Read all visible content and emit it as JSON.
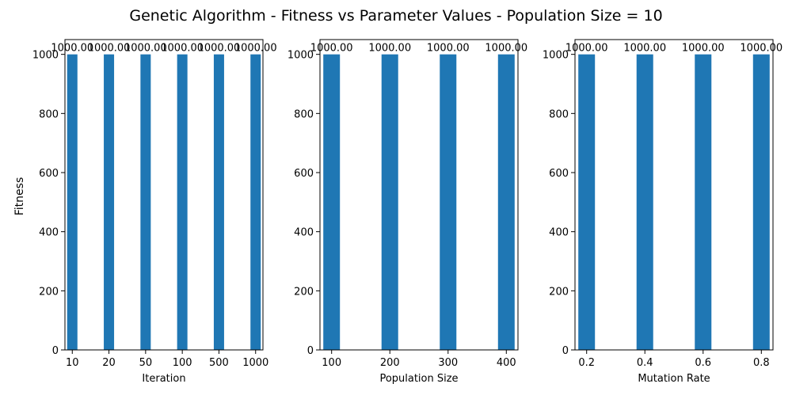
{
  "figure": {
    "suptitle": "Genetic Algorithm - Fitness vs Parameter Values - Population Size = 10",
    "shared_ylabel": "Fitness",
    "bar_color": "#1f77b4"
  },
  "chart_data": [
    {
      "type": "bar",
      "categories": [
        "10",
        "20",
        "50",
        "100",
        "500",
        "1000"
      ],
      "values": [
        1000.0,
        1000.0,
        1000.0,
        1000.0,
        1000.0,
        1000.0
      ],
      "data_labels": [
        "1000.00",
        "1000.00",
        "1000.00",
        "1000.00",
        "1000.00",
        "1000.00"
      ],
      "title": "",
      "xlabel": "Iteration",
      "ylabel": "Fitness",
      "ylim": [
        0,
        1050
      ],
      "yticks": [
        0,
        200,
        400,
        600,
        800,
        1000
      ],
      "grid": false
    },
    {
      "type": "bar",
      "categories": [
        "100",
        "200",
        "300",
        "400"
      ],
      "values": [
        1000.0,
        1000.0,
        1000.0,
        1000.0
      ],
      "data_labels": [
        "1000.00",
        "1000.00",
        "1000.00",
        "1000.00"
      ],
      "title": "",
      "xlabel": "Population Size",
      "ylabel": "",
      "ylim": [
        0,
        1050
      ],
      "yticks": [
        0,
        200,
        400,
        600,
        800,
        1000
      ],
      "grid": false
    },
    {
      "type": "bar",
      "categories": [
        "0.2",
        "0.4",
        "0.6",
        "0.8"
      ],
      "values": [
        1000.0,
        1000.0,
        1000.0,
        1000.0
      ],
      "data_labels": [
        "1000.00",
        "1000.00",
        "1000.00",
        "1000.00"
      ],
      "title": "",
      "xlabel": "Mutation Rate",
      "ylabel": "",
      "ylim": [
        0,
        1050
      ],
      "yticks": [
        0,
        200,
        400,
        600,
        800,
        1000
      ],
      "grid": false
    }
  ]
}
